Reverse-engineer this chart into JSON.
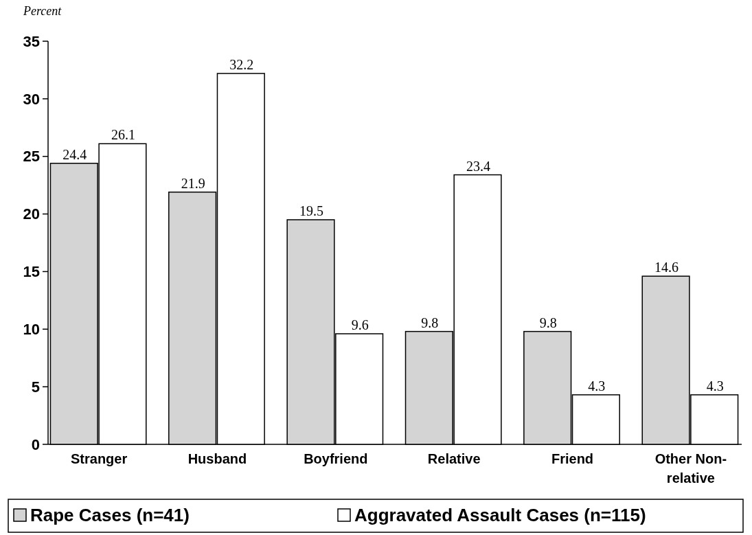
{
  "chart_data": {
    "type": "bar",
    "ylabel": "Percent",
    "categories": [
      "Stranger",
      "Husband",
      "Boyfriend",
      "Relative",
      "Friend",
      "Other Non-relative"
    ],
    "series": [
      {
        "name": "Rape Cases (n=41)",
        "color": "#d4d4d4",
        "values": [
          24.4,
          21.9,
          19.5,
          9.8,
          9.8,
          14.6
        ]
      },
      {
        "name": "Aggravated Assault Cases (n=115)",
        "color": "#ffffff",
        "values": [
          26.1,
          32.2,
          9.6,
          23.4,
          4.3,
          4.3
        ]
      }
    ],
    "ylim": [
      0,
      35
    ],
    "yticks": [
      0,
      5,
      10,
      15,
      20,
      25,
      30,
      35
    ],
    "data_labels": true,
    "grid": false,
    "legend": "bottom"
  }
}
